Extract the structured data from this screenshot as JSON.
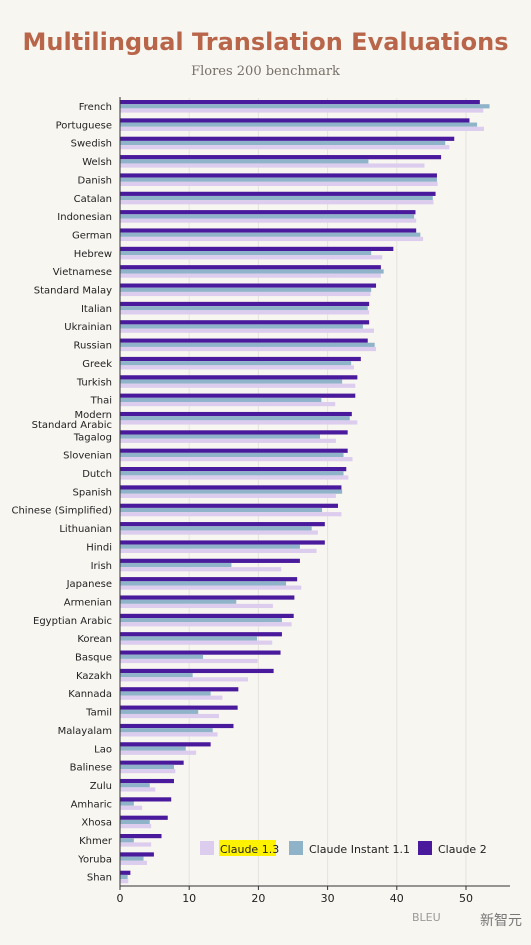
{
  "header": {
    "title": "Multilingual Translation Evaluations",
    "subtitle": "Flores 200 benchmark"
  },
  "footer": {
    "axis_caption": "BLEU",
    "watermark": "新智元"
  },
  "colors": {
    "title": "#b9654a",
    "claude_1_3": "#dccdee",
    "claude_instant_1_1": "#8fb3c8",
    "claude_2": "#4a1a9c",
    "legend_highlight": "#fff200",
    "grid": "#e6e3de",
    "background": "#f8f6f1"
  },
  "chart_data": {
    "type": "bar",
    "orientation": "horizontal",
    "title": "Multilingual Translation Evaluations",
    "subtitle": "Flores 200 benchmark",
    "xlabel": "BLEU",
    "xlim": [
      0,
      56
    ],
    "xticks": [
      0,
      10,
      20,
      30,
      40,
      50
    ],
    "grid": "vertical",
    "legend_position": "bottom-right",
    "categories": [
      "French",
      "Portuguese",
      "Swedish",
      "Welsh",
      "Danish",
      "Catalan",
      "Indonesian",
      "German",
      "Hebrew",
      "Vietnamese",
      "Standard Malay",
      "Italian",
      "Ukrainian",
      "Russian",
      "Greek",
      "Turkish",
      "Thai",
      "Modern Standard Arabic",
      "Tagalog",
      "Slovenian",
      "Dutch",
      "Spanish",
      "Chinese (Simplified)",
      "Lithuanian",
      "Hindi",
      "Irish",
      "Japanese",
      "Armenian",
      "Egyptian Arabic",
      "Korean",
      "Basque",
      "Kazakh",
      "Kannada",
      "Tamil",
      "Malayalam",
      "Lao",
      "Balinese",
      "Zulu",
      "Amharic",
      "Xhosa",
      "Khmer",
      "Yoruba",
      "Shan"
    ],
    "category_lines": [
      [
        "French"
      ],
      [
        "Portuguese"
      ],
      [
        "Swedish"
      ],
      [
        "Welsh"
      ],
      [
        "Danish"
      ],
      [
        "Catalan"
      ],
      [
        "Indonesian"
      ],
      [
        "German"
      ],
      [
        "Hebrew"
      ],
      [
        "Vietnamese"
      ],
      [
        "Standard Malay"
      ],
      [
        "Italian"
      ],
      [
        "Ukrainian"
      ],
      [
        "Russian"
      ],
      [
        "Greek"
      ],
      [
        "Turkish"
      ],
      [
        "Thai"
      ],
      [
        "Modern",
        "Standard Arabic"
      ],
      [
        "Tagalog"
      ],
      [
        "Slovenian"
      ],
      [
        "Dutch"
      ],
      [
        "Spanish"
      ],
      [
        "Chinese (Simplified)"
      ],
      [
        "Lithuanian"
      ],
      [
        "Hindi"
      ],
      [
        "Irish"
      ],
      [
        "Japanese"
      ],
      [
        "Armenian"
      ],
      [
        "Egyptian Arabic"
      ],
      [
        "Korean"
      ],
      [
        "Basque"
      ],
      [
        "Kazakh"
      ],
      [
        "Kannada"
      ],
      [
        "Tamil"
      ],
      [
        "Malayalam"
      ],
      [
        "Lao"
      ],
      [
        "Balinese"
      ],
      [
        "Zulu"
      ],
      [
        "Amharic"
      ],
      [
        "Xhosa"
      ],
      [
        "Khmer"
      ],
      [
        "Yoruba"
      ],
      [
        "Shan"
      ]
    ],
    "series": [
      {
        "name": "Claude 2",
        "values": [
          52.0,
          50.5,
          48.3,
          46.4,
          45.8,
          45.6,
          42.7,
          42.8,
          39.5,
          37.7,
          37.0,
          36.0,
          36.0,
          35.8,
          34.8,
          34.3,
          34.0,
          33.5,
          32.9,
          32.9,
          32.7,
          32.0,
          31.5,
          29.6,
          29.6,
          26.0,
          25.6,
          25.2,
          25.1,
          23.4,
          23.2,
          22.2,
          17.1,
          17.0,
          16.4,
          13.1,
          9.2,
          7.8,
          7.4,
          6.9,
          6.0,
          4.9,
          1.5
        ]
      },
      {
        "name": "Claude Instant 1.1",
        "values": [
          53.4,
          51.6,
          47.0,
          35.9,
          45.8,
          45.2,
          42.5,
          43.4,
          36.3,
          38.1,
          36.3,
          35.8,
          35.1,
          36.8,
          33.4,
          32.1,
          29.1,
          33.2,
          28.9,
          32.3,
          32.3,
          32.1,
          29.2,
          27.7,
          26.0,
          16.1,
          24.0,
          16.8,
          23.4,
          19.8,
          12.0,
          10.5,
          13.1,
          11.3,
          13.4,
          9.5,
          7.8,
          4.3,
          2.0,
          4.3,
          2.0,
          3.4,
          1.1
        ]
      },
      {
        "name": "Claude 1.3",
        "values": [
          52.5,
          52.6,
          47.6,
          44.0,
          45.9,
          45.3,
          42.8,
          43.8,
          37.9,
          37.7,
          36.2,
          36.0,
          36.7,
          37.0,
          33.8,
          34.0,
          31.1,
          34.3,
          31.2,
          33.6,
          33.0,
          31.2,
          32.0,
          28.6,
          28.4,
          23.3,
          26.2,
          22.1,
          24.8,
          22.0,
          19.9,
          18.5,
          14.8,
          14.3,
          14.1,
          11.0,
          8.0,
          5.1,
          3.2,
          4.5,
          4.5,
          3.9,
          1.2
        ]
      }
    ]
  }
}
